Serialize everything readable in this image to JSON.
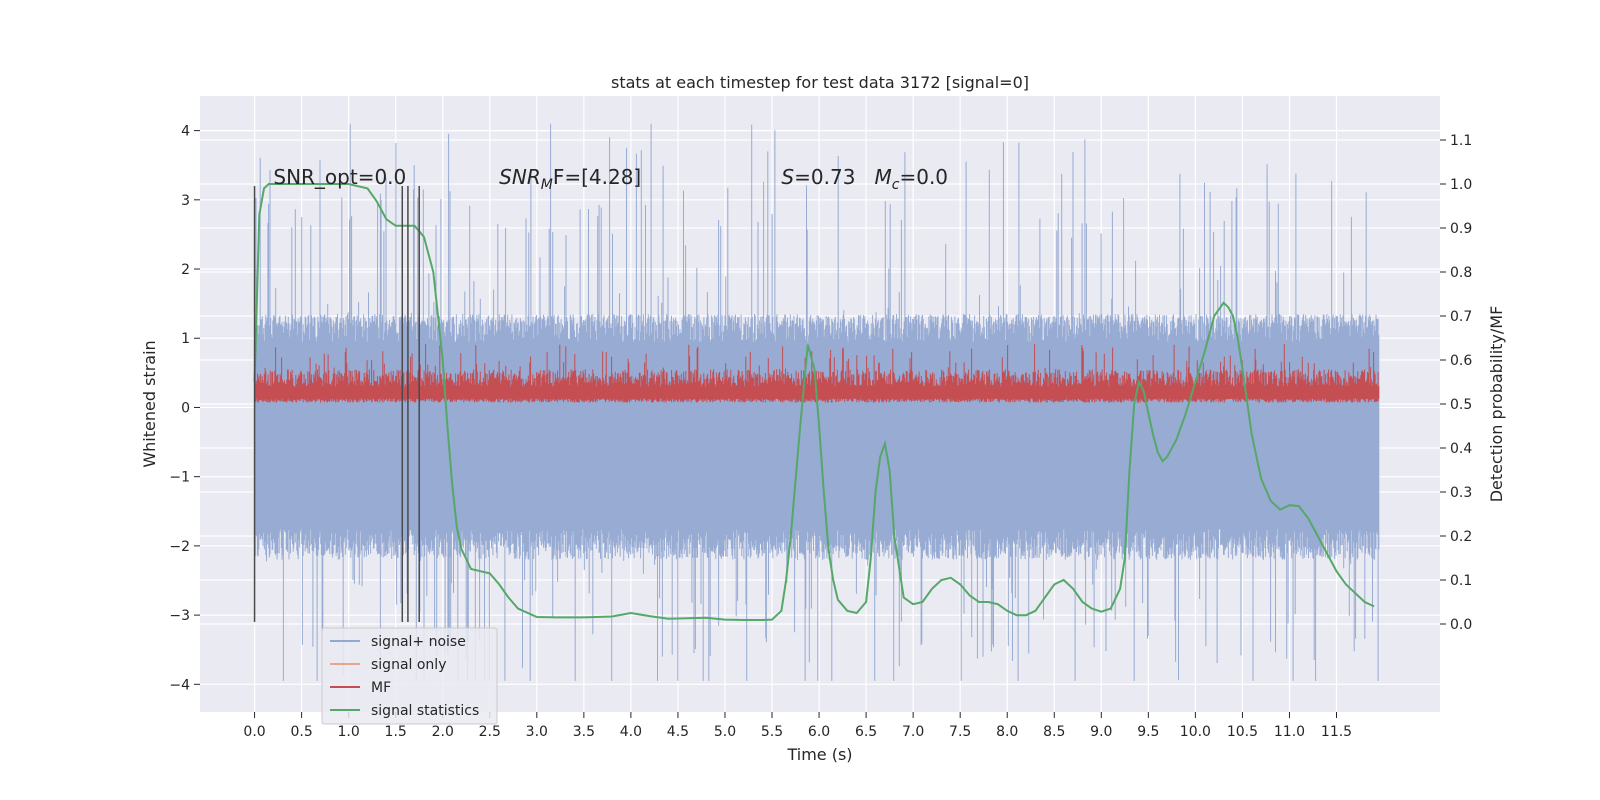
{
  "chart_data": {
    "type": "line",
    "title": "stats at each timestep for test data 3172 [signal=0]",
    "xlabel": "Time (s)",
    "ylabel_left": "Whitened strain",
    "ylabel_right": "Detection probability/MF",
    "xlim": [
      -0.58,
      12.6
    ],
    "ylim_left": [
      -4.4,
      4.5
    ],
    "ylim_right": [
      -0.2,
      1.2
    ],
    "grid": true,
    "legend_position": "lower-left",
    "x_ticks": [
      "0.0",
      "0.5",
      "1.0",
      "1.5",
      "2.0",
      "2.5",
      "3.0",
      "3.5",
      "4.0",
      "4.5",
      "5.0",
      "5.5",
      "6.0",
      "6.5",
      "7.0",
      "7.5",
      "8.0",
      "8.5",
      "9.0",
      "9.5",
      "10.0",
      "10.5",
      "11.0",
      "11.5"
    ],
    "y_ticks_left": [
      "4",
      "3",
      "2",
      "1",
      "0",
      "−1",
      "−2",
      "−3",
      "−4"
    ],
    "y_ticks_right": [
      "1.1",
      "1.0",
      "0.9",
      "0.8",
      "0.7",
      "0.6",
      "0.5",
      "0.4",
      "0.3",
      "0.2",
      "0.1",
      "0.0"
    ],
    "annotations": {
      "snr_opt": {
        "label": "SNR_opt=0.0",
        "x": 0.2
      },
      "snr_mf": {
        "base": "SNR",
        "sub": "M",
        "tail": "F=[4.28]",
        "x": 2.6
      },
      "s_mc": {
        "s_label": "S",
        "s_value": "=0.73",
        "m_label": "M",
        "m_sub": "c",
        "m_value": "=0.0",
        "x": 5.6
      }
    },
    "vertical_markers": {
      "x": [
        0.0,
        1.57,
        1.63,
        1.75
      ],
      "y_range": [
        -3.1,
        3.2
      ]
    },
    "series": [
      {
        "name": "signal+ noise",
        "color": "#92a8d1",
        "kind": "noise",
        "x_range": [
          0.0,
          11.95
        ],
        "band": [
          -2.2,
          1.35
        ],
        "extremes": [
          -3.95,
          4.1
        ]
      },
      {
        "name": "signal only",
        "color": "#e8a58a",
        "kind": "flat",
        "values": []
      },
      {
        "name": "MF",
        "color": "#c44e52",
        "kind": "mf",
        "x_range": [
          0.0,
          11.95
        ],
        "band": [
          0.1,
          0.55
        ],
        "peak": 0.92
      },
      {
        "name": "signal statistics",
        "color": "#55a868",
        "kind": "line",
        "axis": "right",
        "x": [
          0.0,
          0.05,
          0.1,
          0.15,
          0.3,
          0.5,
          1.0,
          1.2,
          1.3,
          1.4,
          1.5,
          1.6,
          1.7,
          1.8,
          1.9,
          2.0,
          2.05,
          2.1,
          2.15,
          2.2,
          2.3,
          2.4,
          2.5,
          2.6,
          2.7,
          2.8,
          3.0,
          3.2,
          3.5,
          3.8,
          4.0,
          4.2,
          4.4,
          4.6,
          4.8,
          5.0,
          5.2,
          5.4,
          5.5,
          5.6,
          5.65,
          5.7,
          5.8,
          5.88,
          5.95,
          6.0,
          6.05,
          6.1,
          6.15,
          6.2,
          6.3,
          6.4,
          6.5,
          6.55,
          6.6,
          6.65,
          6.7,
          6.75,
          6.8,
          6.9,
          7.0,
          7.1,
          7.2,
          7.3,
          7.4,
          7.5,
          7.6,
          7.7,
          7.8,
          7.9,
          8.0,
          8.1,
          8.2,
          8.3,
          8.4,
          8.5,
          8.6,
          8.7,
          8.8,
          8.9,
          9.0,
          9.1,
          9.2,
          9.25,
          9.3,
          9.35,
          9.4,
          9.45,
          9.5,
          9.55,
          9.6,
          9.65,
          9.7,
          9.8,
          9.9,
          10.0,
          10.1,
          10.2,
          10.3,
          10.35,
          10.4,
          10.45,
          10.5,
          10.6,
          10.7,
          10.8,
          10.9,
          11.0,
          11.1,
          11.2,
          11.3,
          11.4,
          11.5,
          11.6,
          11.7,
          11.8,
          11.9
        ],
        "values": [
          0.55,
          0.93,
          0.99,
          1.0,
          1.0,
          1.0,
          1.0,
          0.99,
          0.96,
          0.92,
          0.905,
          0.905,
          0.905,
          0.88,
          0.8,
          0.6,
          0.45,
          0.32,
          0.22,
          0.17,
          0.125,
          0.12,
          0.115,
          0.09,
          0.06,
          0.035,
          0.016,
          0.015,
          0.015,
          0.017,
          0.025,
          0.018,
          0.012,
          0.013,
          0.014,
          0.01,
          0.009,
          0.009,
          0.01,
          0.03,
          0.1,
          0.2,
          0.45,
          0.635,
          0.58,
          0.45,
          0.3,
          0.17,
          0.1,
          0.055,
          0.03,
          0.025,
          0.05,
          0.15,
          0.3,
          0.38,
          0.41,
          0.35,
          0.2,
          0.06,
          0.045,
          0.05,
          0.08,
          0.1,
          0.105,
          0.09,
          0.065,
          0.05,
          0.05,
          0.045,
          0.03,
          0.02,
          0.02,
          0.03,
          0.06,
          0.09,
          0.1,
          0.08,
          0.05,
          0.035,
          0.028,
          0.035,
          0.08,
          0.15,
          0.35,
          0.5,
          0.55,
          0.53,
          0.48,
          0.43,
          0.39,
          0.37,
          0.38,
          0.42,
          0.48,
          0.55,
          0.62,
          0.7,
          0.73,
          0.72,
          0.7,
          0.65,
          0.58,
          0.43,
          0.33,
          0.28,
          0.26,
          0.27,
          0.268,
          0.24,
          0.2,
          0.16,
          0.12,
          0.09,
          0.07,
          0.05,
          0.04
        ]
      }
    ]
  }
}
